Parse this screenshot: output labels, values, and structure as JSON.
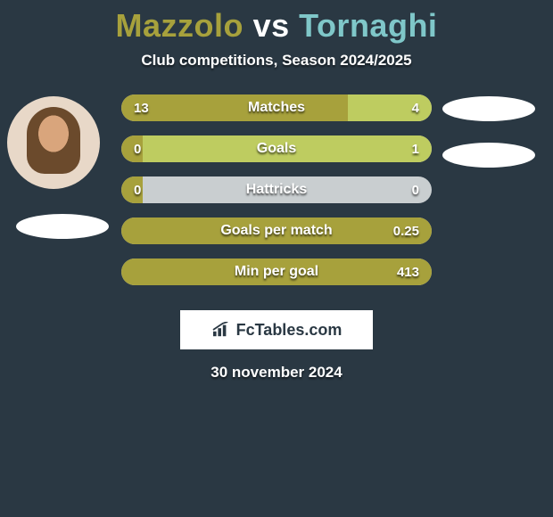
{
  "title": {
    "player1": "Mazzolo",
    "vs": "vs",
    "player2": "Tornaghi",
    "player1_color": "#a7a13c",
    "vs_color": "#ffffff",
    "player2_color": "#7fc7c9"
  },
  "subtitle": "Club competitions, Season 2024/2025",
  "colors": {
    "background": "#2a3843",
    "bar_left": "#a7a13c",
    "bar_right": "#becc60",
    "empty": "#c9ced0",
    "text": "#ffffff"
  },
  "bars": [
    {
      "label": "Matches",
      "left_val": "13",
      "right_val": "4",
      "left_pct": 73,
      "right_pct": 27
    },
    {
      "label": "Goals",
      "left_val": "0",
      "right_val": "1",
      "left_pct": 7,
      "right_pct": 93
    },
    {
      "label": "Hattricks",
      "left_val": "0",
      "right_val": "0",
      "left_pct": 7,
      "right_pct": 0
    },
    {
      "label": "Goals per match",
      "left_val": "",
      "right_val": "0.25",
      "left_pct": 100,
      "right_pct": 0
    },
    {
      "label": "Min per goal",
      "left_val": "",
      "right_val": "413",
      "left_pct": 100,
      "right_pct": 0
    }
  ],
  "logo_text": "FcTables.com",
  "date": "30 november 2024"
}
